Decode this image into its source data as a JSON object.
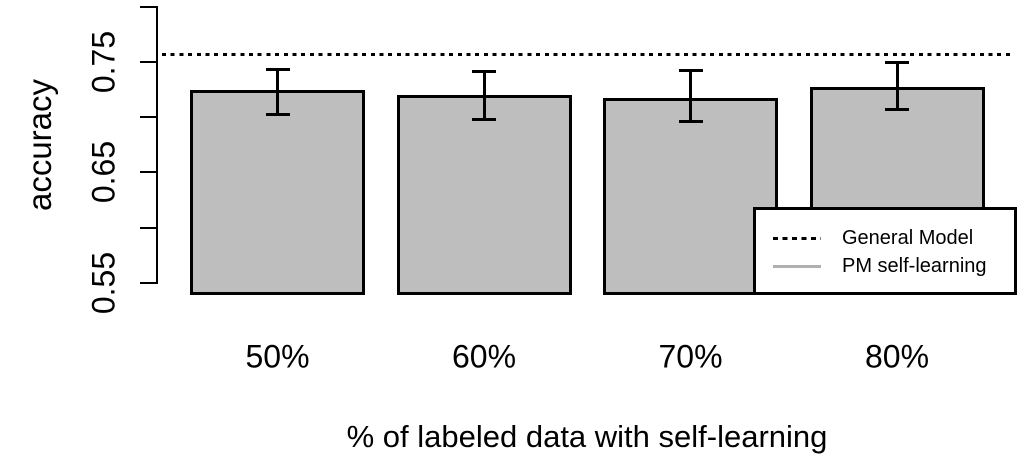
{
  "chart_data": {
    "type": "bar",
    "title": "",
    "xlabel": "% of labeled data with self-learning",
    "ylabel": "accuracy",
    "categories": [
      "50%",
      "60%",
      "70%",
      "80%"
    ],
    "values": [
      0.725,
      0.72,
      0.717,
      0.727
    ],
    "error_bars": {
      "high": [
        0.743,
        0.741,
        0.742,
        0.75
      ],
      "low": [
        0.702,
        0.698,
        0.696,
        0.707
      ]
    },
    "reference_line": {
      "label": "General Model",
      "value": 0.757,
      "style": "dotted",
      "color": "#000000"
    },
    "series_label": "PM self-learning",
    "ylim": [
      0.539,
      0.803
    ],
    "yticks": [
      0.55,
      0.6,
      0.65,
      0.7,
      0.75,
      0.8
    ],
    "ytick_labels": [
      "0.55",
      "",
      "0.65",
      "",
      "0.75",
      ""
    ],
    "grid": false,
    "bar_fill": "#bebebe",
    "bar_border": "#000000",
    "legend": {
      "position": "inside-bottom-right",
      "entries": [
        {
          "label": "General Model",
          "line": "dotted-black"
        },
        {
          "label": "PM self-learning",
          "line": "solid-gray",
          "color": "#b0b0b0"
        }
      ]
    }
  }
}
